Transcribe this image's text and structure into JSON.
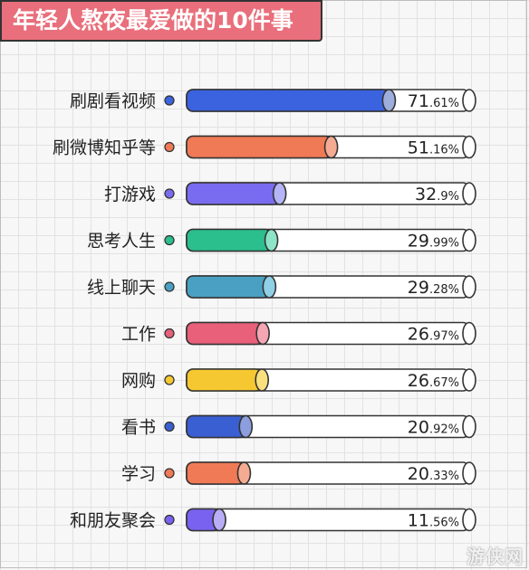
{
  "chart_data": {
    "type": "bar",
    "title": "年轻人熬夜最爱做的10件事",
    "categories": [
      "刷剧看视频",
      "刷微博知乎等",
      "打游戏",
      "思考人生",
      "线上聊天",
      "工作",
      "网购",
      "看书",
      "学习",
      "和朋友聚会"
    ],
    "values": [
      71.61,
      51.16,
      32.9,
      29.99,
      29.28,
      26.97,
      26.67,
      20.92,
      20.33,
      11.56
    ],
    "value_labels": [
      {
        "int": "71",
        "dec": ".61%"
      },
      {
        "int": "51",
        "dec": ".16%"
      },
      {
        "int": "32",
        "dec": ".9%"
      },
      {
        "int": "29",
        "dec": ".99%"
      },
      {
        "int": "29",
        "dec": ".28%"
      },
      {
        "int": "26",
        "dec": ".97%"
      },
      {
        "int": "26",
        "dec": ".67%"
      },
      {
        "int": "20",
        "dec": ".92%"
      },
      {
        "int": "20",
        "dec": ".33%"
      },
      {
        "int": "11",
        "dec": ".56%"
      }
    ],
    "colors": [
      "#3b63e0",
      "#f07a55",
      "#7a6cf0",
      "#2bbf8e",
      "#4aa0c2",
      "#e8607a",
      "#f5c832",
      "#3a5fd2",
      "#f07a55",
      "#7a62f0"
    ],
    "cap_colors": [
      "#9eaddc",
      "#f5ab92",
      "#b4b4f6",
      "#8ee4c8",
      "#8fd0e6",
      "#f4a6b4",
      "#f8e07e",
      "#8d9edf",
      "#f5ab92",
      "#b9adf6"
    ],
    "xlim": [
      0,
      100
    ],
    "grid": true,
    "legend": "none"
  },
  "watermark": "游侠网"
}
